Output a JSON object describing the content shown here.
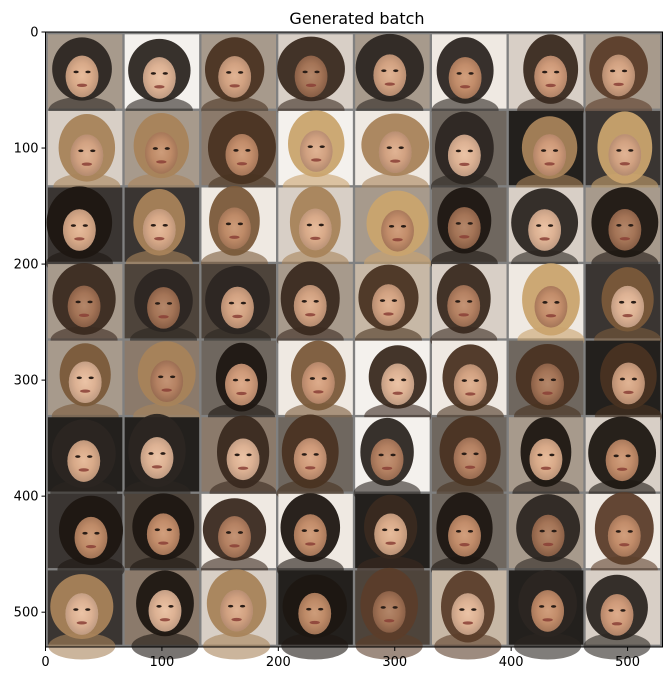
{
  "chart_data": {
    "type": "heatmap",
    "title": "Generated batch",
    "xlabel": "",
    "ylabel": "",
    "image_extent": {
      "x": [
        0,
        530
      ],
      "y": [
        530,
        0
      ]
    },
    "grid": {
      "rows": 8,
      "cols": 8,
      "tile_px": 64,
      "padding_px": 2,
      "separator_color": "#808080"
    },
    "x_ticks": [
      0,
      100,
      200,
      300,
      400,
      500
    ],
    "y_ticks": [
      0,
      100,
      200,
      300,
      400,
      500
    ],
    "x_tick_labels": [
      "0",
      "100",
      "200",
      "300",
      "400",
      "500"
    ],
    "y_tick_labels": [
      "0",
      "100",
      "200",
      "300",
      "400",
      "500"
    ],
    "content": "grid of generated face images"
  }
}
